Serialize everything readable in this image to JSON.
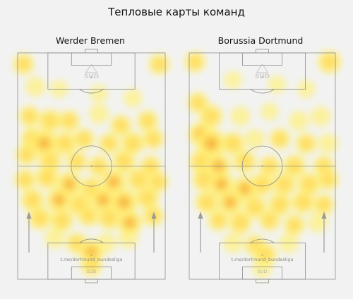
{
  "page_title": "Тепловые карты команд",
  "colors": {
    "background": "#f2f2f2",
    "pitch_lines": "#8c8c8c",
    "heat_low": "#fff176",
    "heat_mid": "#ffd54f",
    "heat_high": "#f4a838",
    "arrow": "#9a9a9a",
    "watermark": "#b5b5b5"
  },
  "watermark_text": "t.me/dortmund_bundesliga",
  "logo_text": "SUD",
  "chart_data": [
    {
      "type": "heatmap",
      "title": "Werder Bremen",
      "attack_direction": "up",
      "hotspots": [
        [
          0.04,
          0.95,
          0.5
        ],
        [
          0.96,
          0.95,
          0.5
        ],
        [
          0.12,
          0.85,
          0.4
        ],
        [
          0.28,
          0.84,
          0.3
        ],
        [
          0.55,
          0.82,
          0.3
        ],
        [
          0.78,
          0.8,
          0.35
        ],
        [
          0.08,
          0.72,
          0.5
        ],
        [
          0.22,
          0.7,
          0.6
        ],
        [
          0.35,
          0.7,
          0.5
        ],
        [
          0.55,
          0.73,
          0.4
        ],
        [
          0.7,
          0.68,
          0.5
        ],
        [
          0.88,
          0.7,
          0.5
        ],
        [
          0.1,
          0.62,
          0.6
        ],
        [
          0.18,
          0.6,
          0.8
        ],
        [
          0.32,
          0.6,
          0.6
        ],
        [
          0.45,
          0.62,
          0.5
        ],
        [
          0.62,
          0.6,
          0.5
        ],
        [
          0.78,
          0.6,
          0.6
        ],
        [
          0.92,
          0.62,
          0.5
        ],
        [
          0.06,
          0.55,
          0.5
        ],
        [
          0.22,
          0.52,
          0.6
        ],
        [
          0.4,
          0.52,
          0.5
        ],
        [
          0.55,
          0.5,
          0.5
        ],
        [
          0.72,
          0.52,
          0.6
        ],
        [
          0.9,
          0.5,
          0.5
        ],
        [
          0.05,
          0.44,
          0.5
        ],
        [
          0.2,
          0.45,
          0.6
        ],
        [
          0.35,
          0.42,
          0.7
        ],
        [
          0.5,
          0.4,
          0.6
        ],
        [
          0.65,
          0.43,
          0.7
        ],
        [
          0.82,
          0.44,
          0.6
        ],
        [
          0.95,
          0.43,
          0.5
        ],
        [
          0.1,
          0.35,
          0.6
        ],
        [
          0.28,
          0.35,
          0.7
        ],
        [
          0.42,
          0.33,
          0.6
        ],
        [
          0.58,
          0.35,
          0.7
        ],
        [
          0.72,
          0.34,
          0.8
        ],
        [
          0.88,
          0.36,
          0.6
        ],
        [
          0.15,
          0.27,
          0.6
        ],
        [
          0.3,
          0.26,
          0.6
        ],
        [
          0.48,
          0.28,
          0.5
        ],
        [
          0.62,
          0.27,
          0.6
        ],
        [
          0.76,
          0.25,
          0.7
        ],
        [
          0.92,
          0.28,
          0.5
        ],
        [
          0.25,
          0.18,
          0.4
        ],
        [
          0.4,
          0.16,
          0.5
        ],
        [
          0.5,
          0.12,
          0.7
        ],
        [
          0.6,
          0.16,
          0.4
        ],
        [
          0.75,
          0.18,
          0.4
        ],
        [
          0.5,
          0.06,
          0.5
        ]
      ]
    },
    {
      "type": "heatmap",
      "title": "Borussia Dortmund",
      "attack_direction": "up",
      "hotspots": [
        [
          0.04,
          0.96,
          0.5
        ],
        [
          0.96,
          0.96,
          0.6
        ],
        [
          0.3,
          0.88,
          0.3
        ],
        [
          0.6,
          0.86,
          0.3
        ],
        [
          0.8,
          0.84,
          0.3
        ],
        [
          0.06,
          0.78,
          0.5
        ],
        [
          0.15,
          0.72,
          0.6
        ],
        [
          0.35,
          0.72,
          0.4
        ],
        [
          0.55,
          0.74,
          0.3
        ],
        [
          0.75,
          0.7,
          0.4
        ],
        [
          0.9,
          0.72,
          0.4
        ],
        [
          0.08,
          0.64,
          0.7
        ],
        [
          0.15,
          0.6,
          0.9
        ],
        [
          0.3,
          0.6,
          0.6
        ],
        [
          0.45,
          0.62,
          0.4
        ],
        [
          0.62,
          0.62,
          0.5
        ],
        [
          0.8,
          0.6,
          0.5
        ],
        [
          0.95,
          0.6,
          0.4
        ],
        [
          0.08,
          0.52,
          0.6
        ],
        [
          0.2,
          0.5,
          0.7
        ],
        [
          0.38,
          0.52,
          0.6
        ],
        [
          0.55,
          0.5,
          0.5
        ],
        [
          0.72,
          0.5,
          0.6
        ],
        [
          0.92,
          0.5,
          0.5
        ],
        [
          0.1,
          0.44,
          0.6
        ],
        [
          0.22,
          0.42,
          0.7
        ],
        [
          0.38,
          0.4,
          0.7
        ],
        [
          0.5,
          0.42,
          0.6
        ],
        [
          0.65,
          0.42,
          0.6
        ],
        [
          0.82,
          0.42,
          0.6
        ],
        [
          0.95,
          0.44,
          0.5
        ],
        [
          0.12,
          0.34,
          0.6
        ],
        [
          0.28,
          0.34,
          0.7
        ],
        [
          0.45,
          0.32,
          0.6
        ],
        [
          0.62,
          0.33,
          0.6
        ],
        [
          0.78,
          0.34,
          0.6
        ],
        [
          0.92,
          0.33,
          0.5
        ],
        [
          0.2,
          0.26,
          0.5
        ],
        [
          0.35,
          0.25,
          0.6
        ],
        [
          0.55,
          0.26,
          0.5
        ],
        [
          0.72,
          0.24,
          0.5
        ],
        [
          0.88,
          0.25,
          0.4
        ],
        [
          0.3,
          0.16,
          0.4
        ],
        [
          0.45,
          0.15,
          0.5
        ],
        [
          0.52,
          0.11,
          0.6
        ],
        [
          0.68,
          0.16,
          0.4
        ],
        [
          0.5,
          0.05,
          0.4
        ]
      ]
    }
  ]
}
